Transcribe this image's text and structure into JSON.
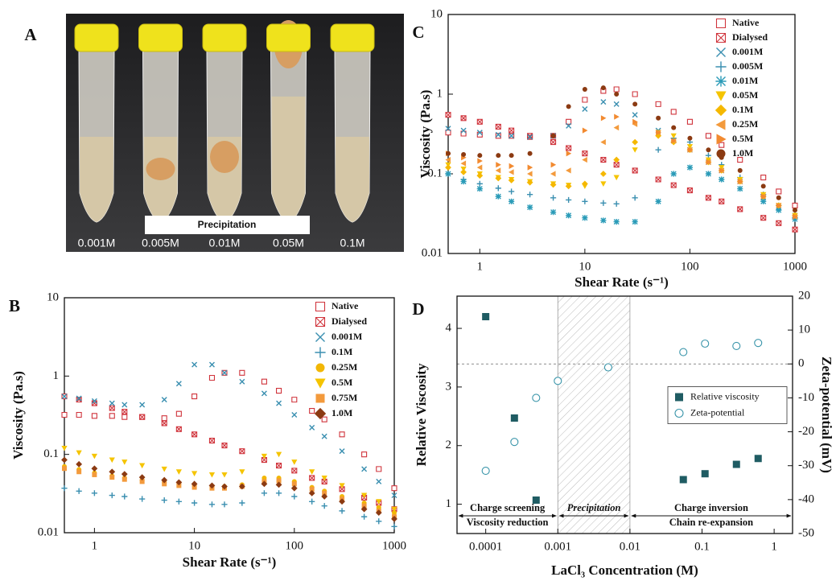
{
  "panel_a": {
    "label": "A",
    "banner": "Precipitation",
    "tubes": [
      "0.001M",
      "0.005M",
      "0.01M",
      "0.05M",
      "0.1M"
    ]
  },
  "chart_data": [
    {
      "type": "scatter",
      "label": "B",
      "x_label": "Shear Rate (s⁻¹)",
      "y_label": "Viscosity (Pa.s)",
      "xscale": "log",
      "yscale": "log",
      "xlim": [
        0.5,
        1000
      ],
      "ylim": [
        0.01,
        10
      ],
      "xticks": [
        1,
        10,
        100,
        1000
      ],
      "yticks": [
        0.01,
        0.1,
        1,
        10
      ],
      "legend": "upper right",
      "x": [
        0.5,
        0.7,
        1,
        1.5,
        2,
        3,
        5,
        7,
        10,
        15,
        20,
        30,
        50,
        70,
        100,
        150,
        200,
        300,
        500,
        700,
        1000
      ],
      "series": [
        {
          "name": "Native",
          "color": "#d0343c",
          "marker": "square-open",
          "values": [
            0.32,
            0.32,
            0.31,
            0.31,
            0.3,
            0.3,
            0.29,
            0.33,
            0.55,
            0.95,
            1.1,
            1.1,
            0.85,
            0.65,
            0.5,
            0.36,
            0.28,
            0.18,
            0.1,
            0.065,
            0.037
          ]
        },
        {
          "name": "Dialysed",
          "color": "#d0343c",
          "marker": "square-crossed",
          "values": [
            0.55,
            0.5,
            0.45,
            0.39,
            0.35,
            0.3,
            0.25,
            0.21,
            0.18,
            0.15,
            0.13,
            0.11,
            0.085,
            0.072,
            0.062,
            0.05,
            0.045,
            0.036,
            0.028,
            0.024,
            0.02
          ]
        },
        {
          "name": "0.001M",
          "color": "#3a8fb0",
          "marker": "x",
          "values": [
            0.55,
            0.52,
            0.48,
            0.45,
            0.43,
            0.43,
            0.5,
            0.8,
            1.4,
            1.4,
            1.1,
            0.85,
            0.6,
            0.45,
            0.32,
            0.22,
            0.17,
            0.11,
            0.065,
            0.045,
            0.03
          ]
        },
        {
          "name": "0.1M",
          "color": "#3a8fb0",
          "marker": "plus",
          "values": [
            0.037,
            0.034,
            0.032,
            0.03,
            0.029,
            0.027,
            0.026,
            0.025,
            0.024,
            0.023,
            0.023,
            0.024,
            0.032,
            0.032,
            0.029,
            0.025,
            0.022,
            0.019,
            0.016,
            0.014,
            0.012
          ]
        },
        {
          "name": "0.25M",
          "color": "#f2b705",
          "marker": "circle",
          "values": [
            0.07,
            0.064,
            0.058,
            0.053,
            0.05,
            0.047,
            0.044,
            0.042,
            0.04,
            0.039,
            0.039,
            0.041,
            0.05,
            0.05,
            0.045,
            0.038,
            0.034,
            0.029,
            0.024,
            0.021,
            0.018
          ]
        },
        {
          "name": "0.5M",
          "color": "#f5c400",
          "marker": "triangle-down",
          "values": [
            0.12,
            0.105,
            0.095,
            0.085,
            0.08,
            0.072,
            0.065,
            0.06,
            0.057,
            0.055,
            0.055,
            0.06,
            0.095,
            0.1,
            0.08,
            0.06,
            0.05,
            0.04,
            0.03,
            0.025,
            0.02
          ]
        },
        {
          "name": "0.75M",
          "color": "#f39a3c",
          "marker": "square",
          "values": [
            0.066,
            0.06,
            0.055,
            0.051,
            0.048,
            0.045,
            0.042,
            0.04,
            0.038,
            0.037,
            0.037,
            0.039,
            0.045,
            0.046,
            0.042,
            0.036,
            0.032,
            0.027,
            0.022,
            0.019,
            0.016
          ]
        },
        {
          "name": "1.0M",
          "color": "#8b3a12",
          "marker": "diamond",
          "values": [
            0.085,
            0.075,
            0.066,
            0.06,
            0.056,
            0.051,
            0.047,
            0.044,
            0.042,
            0.04,
            0.039,
            0.039,
            0.042,
            0.041,
            0.037,
            0.032,
            0.029,
            0.025,
            0.02,
            0.018,
            0.015
          ]
        }
      ]
    },
    {
      "type": "scatter",
      "label": "C",
      "x_label": "Shear Rate (s⁻¹)",
      "y_label": "Viscosity (Pa.s)",
      "xscale": "log",
      "yscale": "log",
      "xlim": [
        0.5,
        1000
      ],
      "ylim": [
        0.01,
        10
      ],
      "xticks": [
        1,
        10,
        100,
        1000
      ],
      "yticks": [
        0.01,
        0.1,
        1,
        10
      ],
      "legend": "upper right",
      "x": [
        0.5,
        0.7,
        1,
        1.5,
        2,
        3,
        5,
        7,
        10,
        15,
        20,
        30,
        50,
        70,
        100,
        150,
        200,
        300,
        500,
        700,
        1000
      ],
      "series": [
        {
          "name": "Native",
          "color": "#d0343c",
          "marker": "square-open",
          "values": [
            0.33,
            0.32,
            0.31,
            0.3,
            0.3,
            0.29,
            0.3,
            0.45,
            0.85,
            1.1,
            1.15,
            1.0,
            0.75,
            0.6,
            0.45,
            0.3,
            0.23,
            0.15,
            0.09,
            0.06,
            0.04
          ]
        },
        {
          "name": "Dialysed",
          "color": "#d0343c",
          "marker": "square-crossed",
          "values": [
            0.55,
            0.5,
            0.45,
            0.39,
            0.35,
            0.3,
            0.25,
            0.21,
            0.18,
            0.15,
            0.13,
            0.11,
            0.085,
            0.072,
            0.062,
            0.05,
            0.045,
            0.036,
            0.028,
            0.024,
            0.02
          ]
        },
        {
          "name": "0.001M",
          "color": "#3a8fb0",
          "marker": "x",
          "values": [
            0.37,
            0.35,
            0.33,
            0.31,
            0.3,
            0.29,
            0.3,
            0.4,
            0.65,
            0.8,
            0.75,
            0.55,
            0.35,
            0.26,
            0.2,
            0.14,
            0.11,
            0.08,
            0.05,
            0.038,
            0.03
          ]
        },
        {
          "name": "0.005M",
          "color": "#3a8fb0",
          "marker": "plus",
          "values": [
            0.1,
            0.085,
            0.075,
            0.066,
            0.06,
            0.055,
            0.05,
            0.047,
            0.045,
            0.043,
            0.042,
            0.05,
            0.2,
            0.28,
            0.25,
            0.17,
            0.13,
            0.09,
            0.055,
            0.04,
            0.028
          ]
        },
        {
          "name": "0.01M",
          "color": "#2a9bb8",
          "marker": "asterisk",
          "values": [
            0.1,
            0.08,
            0.065,
            0.052,
            0.045,
            0.038,
            0.033,
            0.03,
            0.028,
            0.026,
            0.025,
            0.025,
            0.045,
            0.1,
            0.12,
            0.1,
            0.085,
            0.065,
            0.045,
            0.035,
            0.027
          ]
        },
        {
          "name": "0.05M",
          "color": "#f5c400",
          "marker": "triangle-down",
          "values": [
            0.13,
            0.115,
            0.1,
            0.09,
            0.085,
            0.08,
            0.075,
            0.072,
            0.07,
            0.075,
            0.09,
            0.2,
            0.33,
            0.3,
            0.22,
            0.15,
            0.12,
            0.085,
            0.055,
            0.04,
            0.03
          ]
        },
        {
          "name": "0.1M",
          "color": "#f5b800",
          "marker": "diamond",
          "values": [
            0.12,
            0.105,
            0.095,
            0.088,
            0.083,
            0.078,
            0.073,
            0.07,
            0.075,
            0.1,
            0.15,
            0.25,
            0.3,
            0.25,
            0.2,
            0.14,
            0.11,
            0.08,
            0.052,
            0.04,
            0.03
          ]
        },
        {
          "name": "0.25M",
          "color": "#f39a3c",
          "marker": "triangle-left",
          "values": [
            0.15,
            0.135,
            0.12,
            0.11,
            0.105,
            0.1,
            0.1,
            0.11,
            0.15,
            0.25,
            0.38,
            0.42,
            0.33,
            0.26,
            0.2,
            0.14,
            0.11,
            0.08,
            0.052,
            0.04,
            0.029
          ]
        },
        {
          "name": "0.5M",
          "color": "#f28a30",
          "marker": "triangle-right",
          "values": [
            0.18,
            0.16,
            0.145,
            0.13,
            0.125,
            0.12,
            0.13,
            0.18,
            0.35,
            0.5,
            0.52,
            0.45,
            0.33,
            0.26,
            0.2,
            0.14,
            0.11,
            0.08,
            0.052,
            0.04,
            0.029
          ]
        },
        {
          "name": "1.0M",
          "color": "#8b3a12",
          "marker": "circle",
          "values": [
            0.18,
            0.175,
            0.17,
            0.17,
            0.17,
            0.18,
            0.3,
            0.7,
            1.15,
            1.2,
            1.0,
            0.75,
            0.5,
            0.38,
            0.28,
            0.2,
            0.16,
            0.11,
            0.07,
            0.05,
            0.035
          ]
        }
      ]
    },
    {
      "type": "scatter",
      "label": "D",
      "x_label": "LaCl₃ Concentration (M)",
      "y_label": "Relative Viscosity",
      "y2_label": "Zeta-potential (mV)",
      "xscale": "log",
      "xlim": [
        4e-05,
        1.8
      ],
      "ylim": [
        0.5,
        4.55
      ],
      "y2lim": [
        -50,
        20
      ],
      "xticks": [
        0.0001,
        0.001,
        0.01,
        0.1,
        1
      ],
      "yticks": [
        1,
        2,
        3,
        4
      ],
      "y2ticks": [
        -50,
        -40,
        -30,
        -20,
        -10,
        0,
        10,
        20
      ],
      "legend": "center right",
      "shaded_region": [
        0.001,
        0.01
      ],
      "reference_line_y2": 0,
      "annotations": [
        {
          "text": "Charge screening"
        },
        {
          "text": "Viscosity reduction"
        },
        {
          "text": "Precipitation"
        },
        {
          "text": "Charge inversion"
        },
        {
          "text": "Chain re-expansion"
        }
      ],
      "series": [
        {
          "name": "Relative viscosity",
          "color": "#1f5c63",
          "marker": "square",
          "x": [
            0.0001,
            0.00025,
            0.0005,
            0.055,
            0.11,
            0.3,
            0.6
          ],
          "values": [
            4.2,
            2.47,
            1.07,
            1.42,
            1.52,
            1.68,
            1.78
          ]
        },
        {
          "name": "Zeta-potential",
          "color": "#3a95aa",
          "marker": "circle-open",
          "axis": "y2",
          "x": [
            0.0001,
            0.00025,
            0.0005,
            0.001,
            0.005,
            0.055,
            0.11,
            0.3,
            0.6
          ],
          "values": [
            -31.5,
            -23,
            -10,
            -5,
            -1,
            3.5,
            6,
            5.3,
            6.2
          ]
        }
      ]
    }
  ]
}
